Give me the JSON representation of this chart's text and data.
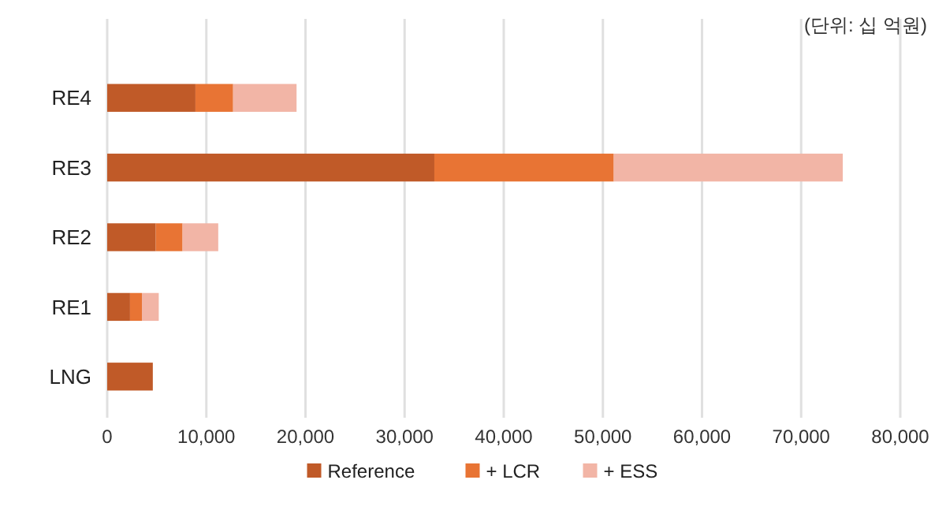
{
  "chart_data": {
    "type": "bar",
    "orientation": "horizontal",
    "stacked": true,
    "categories": [
      "RE4",
      "RE3",
      "RE2",
      "RE1",
      "LNG"
    ],
    "series": [
      {
        "name": "Reference",
        "color": "#c05a28",
        "values": [
          8900,
          33000,
          4900,
          2300,
          4600
        ]
      },
      {
        "name": "+ LCR",
        "color": "#e87434",
        "values": [
          3800,
          18100,
          2700,
          1200,
          null
        ]
      },
      {
        "name": "+ ESS",
        "color": "#f2b5a6",
        "values": [
          6400,
          23100,
          3600,
          1700,
          null
        ]
      }
    ],
    "xlim": [
      0,
      80000
    ],
    "xticks": [
      {
        "value": 0,
        "label": "0"
      },
      {
        "value": 10000,
        "label": "10,000"
      },
      {
        "value": 20000,
        "label": "20,000"
      },
      {
        "value": 30000,
        "label": "30,000"
      },
      {
        "value": 40000,
        "label": "40,000"
      },
      {
        "value": 50000,
        "label": "50,000"
      },
      {
        "value": 60000,
        "label": "60,000"
      },
      {
        "value": 70000,
        "label": "70,000"
      },
      {
        "value": 80000,
        "label": "80,000"
      }
    ],
    "grid": "x",
    "legend": "bottom",
    "annotations": [
      "(단위: 십 억원)"
    ]
  }
}
